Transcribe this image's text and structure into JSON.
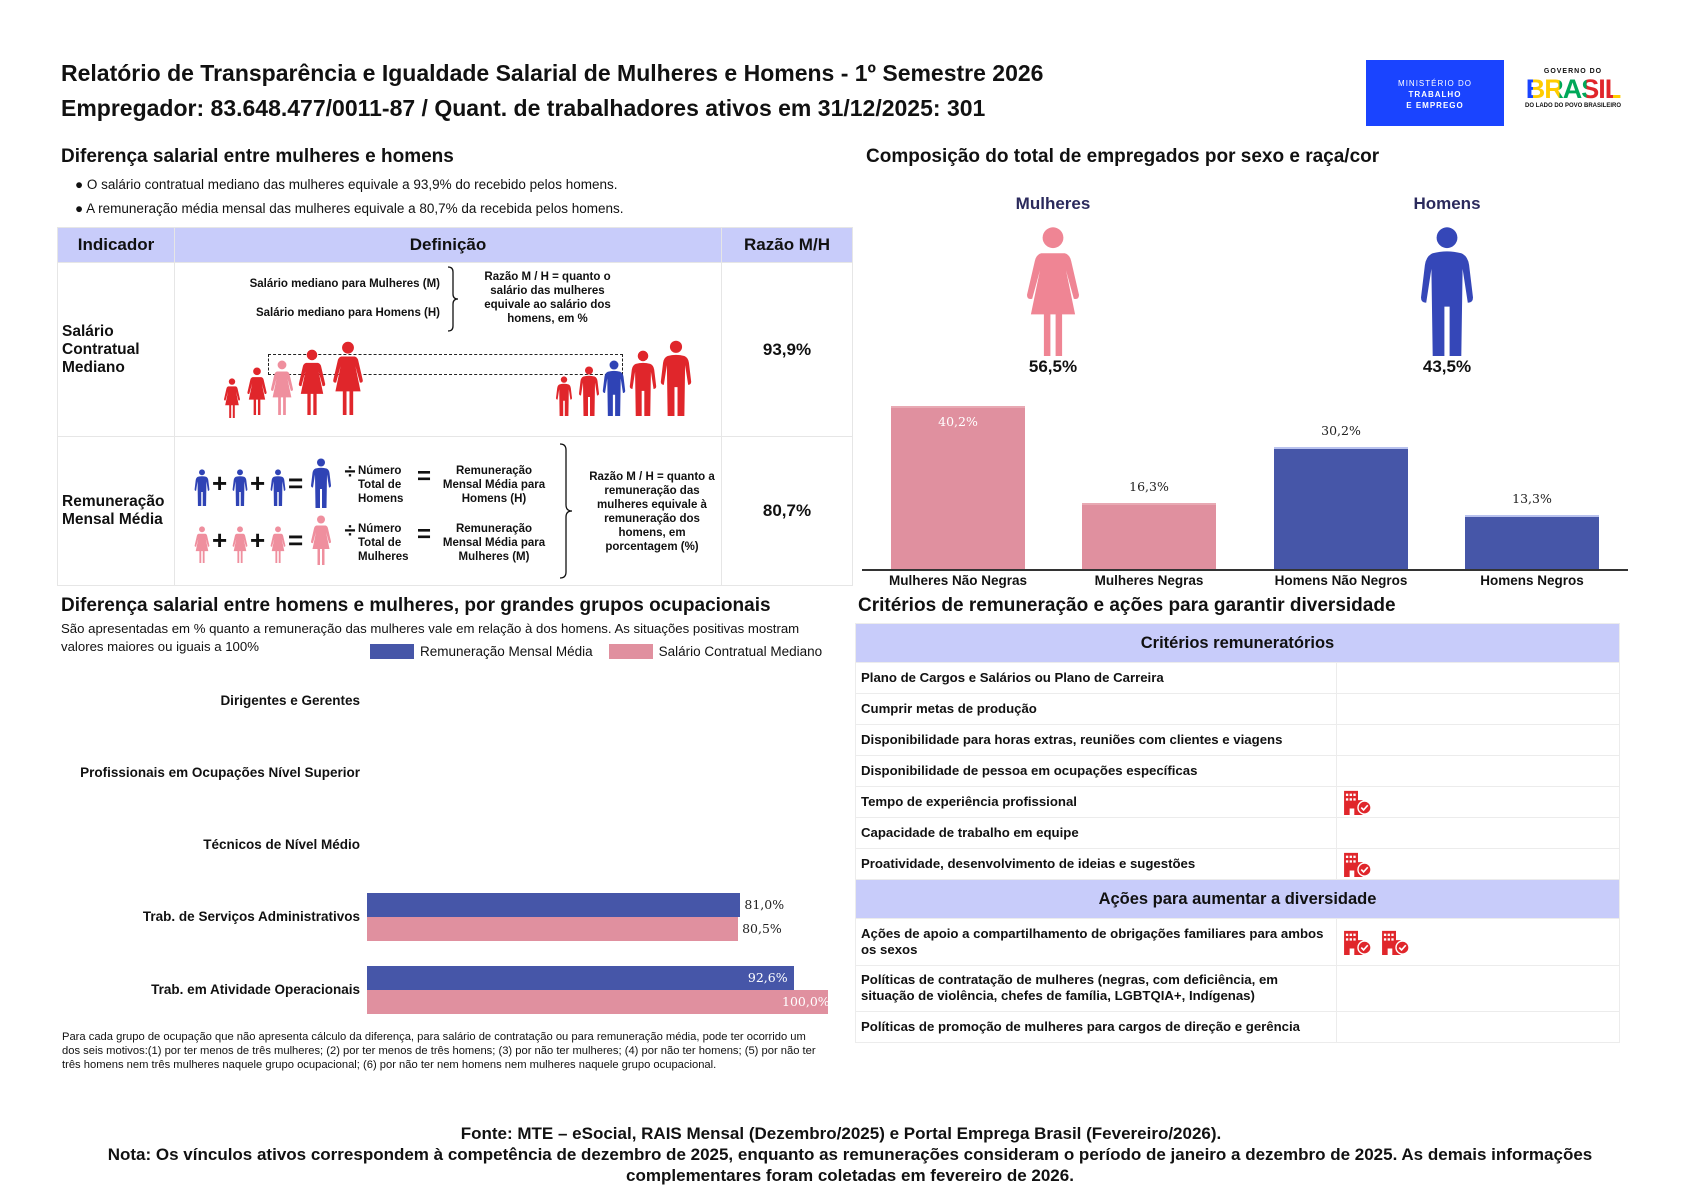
{
  "header": {
    "title": "Relatório de Transparência e Igualdade Salarial de Mulheres e Homens - 1º Semestre 2026",
    "subtitle": "Empregador: 83.648.477/0011-87 / Quant. de trabalhadores ativos em 31/12/2025: 301",
    "logo_ministry": [
      "MINISTÉRIO DO",
      "TRABALHO",
      "E EMPREGO"
    ],
    "logo_gov": {
      "top": "GOVERNO DO",
      "word": "BRASIL",
      "bottom": "DO LADO DO POVO BRASILEIRO"
    }
  },
  "wage_gap": {
    "heading": "Diferença salarial entre mulheres e homens",
    "bullets": [
      "● O salário contratual mediano das mulheres equivale a 93,9% do recebido pelos homens.",
      "● A remuneração média mensal das mulheres equivale a 80,7% da recebida pelos homens."
    ],
    "table": {
      "headers": [
        "Indicador",
        "Definição",
        "Razão M/H"
      ],
      "rows": [
        {
          "indicator": "Salário Contratual Mediano",
          "def_women": "Salário mediano para Mulheres (M)",
          "def_men": "Salário mediano para Homens (H)",
          "ratio_text": "Razão M / H = quanto o salário das mulheres equivale ao salário dos homens, em %",
          "ratio": "93,9%"
        },
        {
          "indicator": "Remuneração Mensal Média",
          "men_count": "Número Total de Homens",
          "men_result": "Remuneração Mensal Média para Homens (H)",
          "women_count": "Número Total de Mulheres",
          "women_result": "Remuneração Mensal Média para Mulheres (M)",
          "ratio_text": "Razão M / H = quanto a remuneração das mulheres equivale à remuneração dos homens, em porcentagem (%)",
          "ratio": "80,7%",
          "ops": {
            "plus": "+",
            "eq": "=",
            "div": "÷"
          }
        }
      ]
    }
  },
  "composition": {
    "heading": "Composição do total de empregados por sexo e raça/cor",
    "women_label": "Mulheres",
    "men_label": "Homens",
    "women_pct": "56,5%",
    "men_pct": "43,5%"
  },
  "occupational": {
    "heading": "Diferença salarial entre homens e mulheres, por grandes grupos ocupacionais",
    "subtitle": "São apresentadas em % quanto a remuneração das mulheres vale em relação à dos homens. As situações positivas mostram valores maiores ou iguais a 100%",
    "footnote": "Para cada grupo de ocupação que não apresenta cálculo da diferença, para salário de contratação ou para remuneração média, pode ter ocorrido um dos seis motivos:(1) por ter menos de três mulheres; (2) por ter menos de três homens; (3) por não ter mulheres; (4) por não ter homens; (5) por não ter três homens nem três mulheres naquele grupo ocupacional; (6) por não ter nem homens nem mulheres naquele grupo ocupacional."
  },
  "chart_data": [
    {
      "type": "bar",
      "categories": [
        "Mulheres Não Negras",
        "Mulheres Negras",
        "Homens Não Negros",
        "Homens Negros"
      ],
      "values": [
        40.2,
        16.3,
        30.2,
        13.3
      ],
      "labels": [
        "40,2%",
        "16,3%",
        "30,2%",
        "13,3%"
      ],
      "colors": [
        "#e0909f",
        "#e0909f",
        "#4656a8",
        "#4656a8"
      ],
      "grid": false
    },
    {
      "type": "bar",
      "orientation": "horizontal",
      "categories": [
        "Dirigentes e Gerentes",
        "Profissionais em Ocupações Nível Superior",
        "Técnicos de Nível Médio",
        "Trab. de Serviços Administrativos",
        "Trab. em Atividade Operacionais"
      ],
      "series": [
        {
          "name": "Remuneração Mensal Média",
          "color": "#4656a8",
          "values": [
            null,
            null,
            null,
            81.0,
            92.6
          ],
          "labels": [
            "",
            "",
            "",
            "81,0%",
            "92,6%"
          ]
        },
        {
          "name": "Salário Contratual Mediano",
          "color": "#e0909f",
          "values": [
            null,
            null,
            null,
            80.5,
            100.0
          ],
          "labels": [
            "",
            "",
            "",
            "80,5%",
            "100,0%"
          ]
        }
      ],
      "xlim": [
        0,
        100
      ],
      "legend": "top-right",
      "grid": false
    }
  ],
  "criteria": {
    "heading": "Critérios de remuneração e ações para garantir diversidade",
    "section1": "Critérios remuneratórios",
    "items1": [
      {
        "label": "Plano de Cargos e Salários ou Plano de Carreira",
        "icons": 0
      },
      {
        "label": "Cumprir metas de produção",
        "icons": 0
      },
      {
        "label": "Disponibilidade para horas extras, reuniões com clientes e viagens",
        "icons": 0
      },
      {
        "label": "Disponibilidade de pessoa em ocupações específicas",
        "icons": 0
      },
      {
        "label": "Tempo de experiência profissional",
        "icons": 1
      },
      {
        "label": "Capacidade de trabalho em equipe",
        "icons": 0
      },
      {
        "label": "Proatividade, desenvolvimento de ideias e sugestões",
        "icons": 1
      }
    ],
    "section2": "Ações para aumentar a diversidade",
    "items2": [
      {
        "label": "Ações de apoio a compartilhamento de obrigações familiares para ambos os sexos",
        "icons": 2
      },
      {
        "label": "Políticas de contratação de mulheres (negras, com deficiência, em situação de violência, chefes de família, LGBTQIA+, Indígenas)",
        "icons": 0
      },
      {
        "label": "Políticas de promoção de mulheres para cargos de direção e gerência",
        "icons": 0
      }
    ],
    "icon": "building-check-icon",
    "icon_color": "#e0262b"
  },
  "footer": {
    "source": "Fonte: MTE – eSocial, RAIS Mensal (Dezembro/2025) e Portal Emprega Brasil (Fevereiro/2026).",
    "note": "Nota: Os vínculos ativos correspondem à competência de dezembro de 2025, enquanto as remunerações consideram o período de janeiro a dezembro de 2025. As demais informações complementares foram coletadas em fevereiro de 2026."
  },
  "colors": {
    "header_bg": "#c8ccfa",
    "women": "#e0909f",
    "men": "#4656a8",
    "ministry_blue": "#1a44ff",
    "figure_red": "#e0262b"
  }
}
